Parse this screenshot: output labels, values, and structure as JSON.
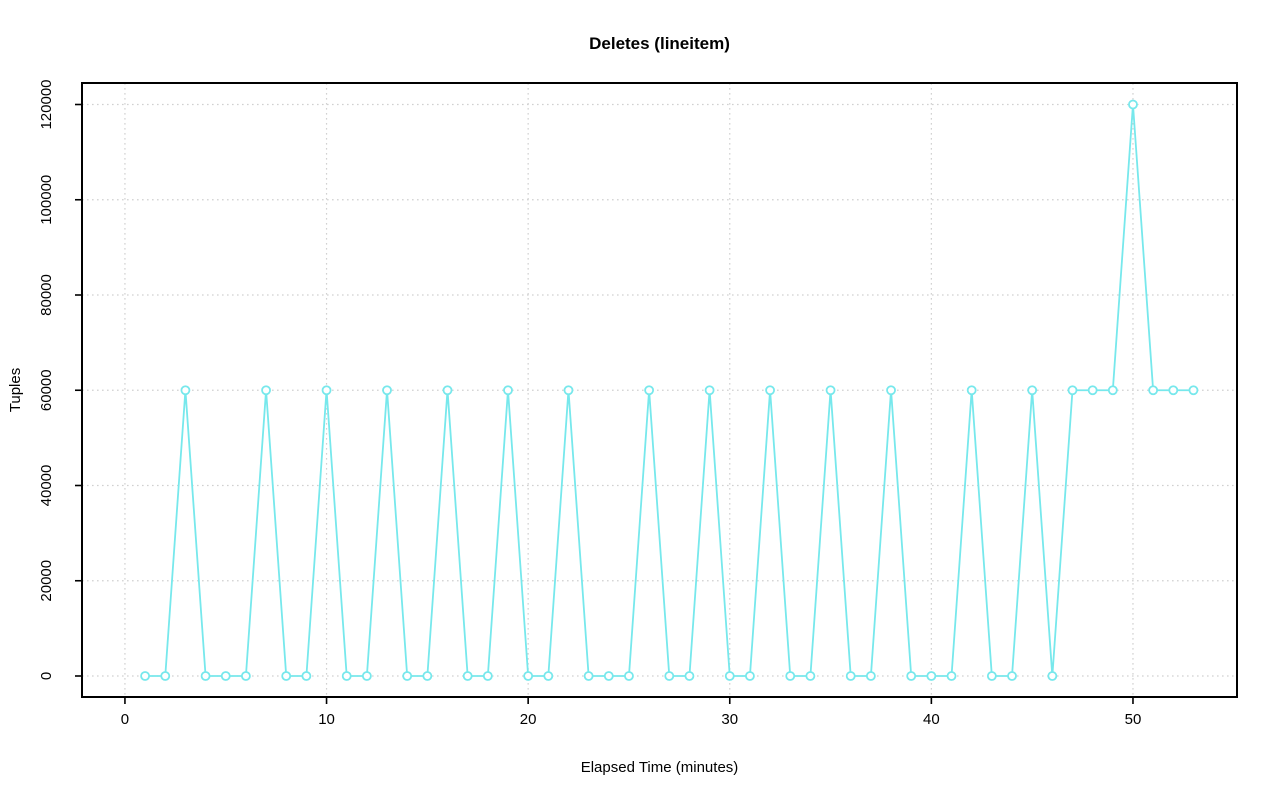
{
  "figure": {
    "background": "#ffffff"
  },
  "chart_data": {
    "type": "line",
    "title": "Deletes (lineitem)",
    "xlabel": "Elapsed Time (minutes)",
    "ylabel": "Tuples",
    "legend": "none",
    "grid": true,
    "grid_style": "dotted",
    "grid_color": "#d0d0d0",
    "axis_color": "#000000",
    "xticks": [
      0,
      10,
      20,
      30,
      40,
      50
    ],
    "yticks": [
      0,
      20000,
      40000,
      60000,
      80000,
      100000,
      120000
    ],
    "xlim": [
      -2.13,
      55.16
    ],
    "ylim": [
      -4410,
      124515
    ],
    "series": [
      {
        "name": "deletes-lineitem",
        "color": "#77e8ec",
        "marker": "open-circle",
        "marker_fill": "#ffffff",
        "x": [
          1,
          2,
          3,
          4,
          5,
          6,
          7,
          8,
          9,
          10,
          11,
          12,
          13,
          14,
          15,
          16,
          17,
          18,
          19,
          20,
          21,
          22,
          23,
          24,
          25,
          26,
          27,
          28,
          29,
          30,
          31,
          32,
          33,
          34,
          35,
          36,
          37,
          38,
          39,
          40,
          41,
          42,
          43,
          44,
          45,
          46,
          47,
          48,
          49,
          50,
          51,
          52,
          53
        ],
        "values": [
          0,
          0,
          60000,
          0,
          0,
          0,
          60000,
          0,
          0,
          60000,
          0,
          0,
          60000,
          0,
          0,
          60000,
          0,
          0,
          60000,
          0,
          0,
          60000,
          0,
          0,
          0,
          60000,
          0,
          0,
          60000,
          0,
          0,
          60000,
          0,
          0,
          60000,
          0,
          0,
          60000,
          0,
          0,
          0,
          60000,
          0,
          0,
          60000,
          0,
          60000,
          60000,
          60000,
          120000,
          60000,
          60000,
          60000
        ]
      }
    ]
  }
}
